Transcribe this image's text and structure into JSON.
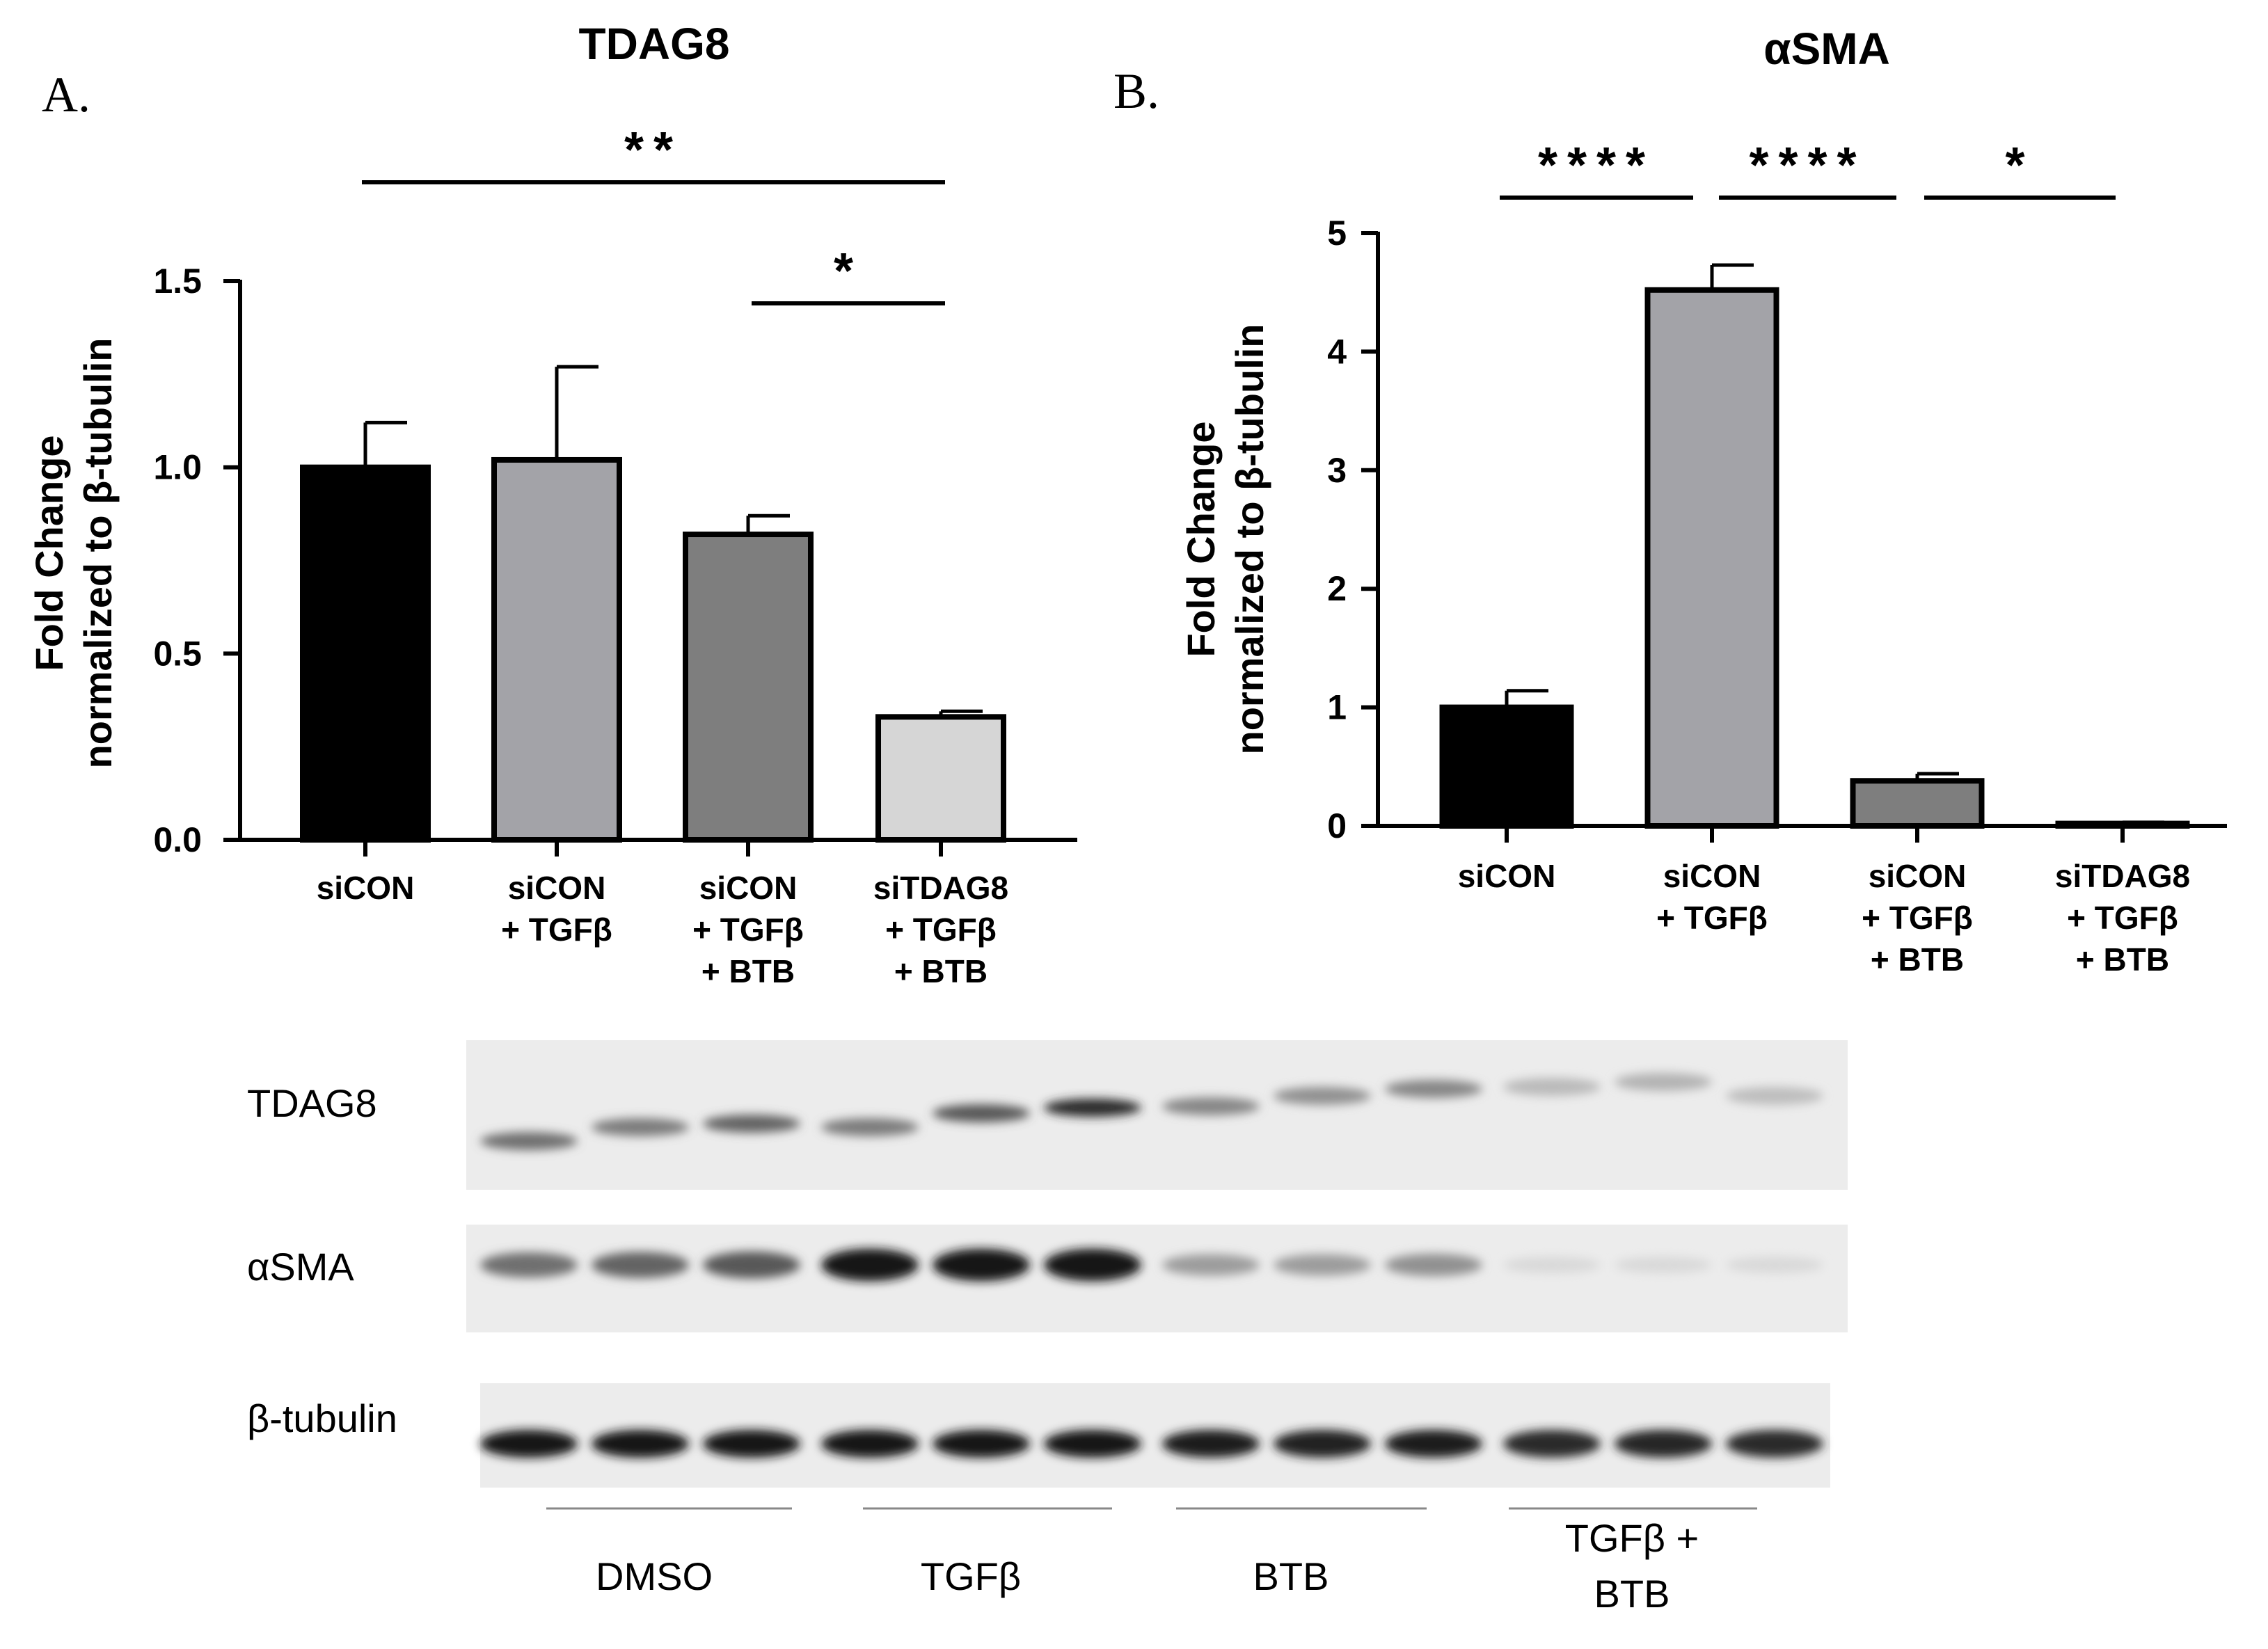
{
  "chart_data": [
    {
      "panel_letter": "A.",
      "type": "bar",
      "title": "TDAG8",
      "ylabel_line1": "Fold Change",
      "ylabel_line2": "normalized to β-tubulin",
      "ylim": [
        0,
        1.5
      ],
      "yticks": [
        "0.0",
        "0.5",
        "1.0",
        "1.5"
      ],
      "ytick_values": [
        0,
        0.5,
        1.0,
        1.5
      ],
      "categories": [
        [
          "siCON"
        ],
        [
          "siCON",
          "+ TGFβ"
        ],
        [
          "siCON",
          "+ TGFβ",
          "+ BTB"
        ],
        [
          "siTDAG8",
          "+ TGFβ",
          "+ BTB"
        ]
      ],
      "values": [
        1.0,
        1.02,
        0.82,
        0.33
      ],
      "errors": [
        0.12,
        0.25,
        0.05,
        0.015
      ],
      "colors": [
        "#000000",
        "#a3a3a8",
        "#7e7e7e",
        "#d6d6d6"
      ],
      "significance": [
        {
          "from": 0,
          "to": 3,
          "label": "**"
        },
        {
          "from": 2,
          "to": 3,
          "label": "*"
        }
      ]
    },
    {
      "panel_letter": "B.",
      "type": "bar",
      "title": "αSMA",
      "ylabel_line1": "Fold Change",
      "ylabel_line2": "normalized to β-tubulin",
      "ylim": [
        0,
        5
      ],
      "yticks": [
        "0",
        "1",
        "2",
        "3",
        "4",
        "5"
      ],
      "ytick_values": [
        0,
        1,
        2,
        3,
        4,
        5
      ],
      "categories": [
        [
          "siCON"
        ],
        [
          "siCON",
          "+ TGFβ"
        ],
        [
          "siCON",
          "+ TGFβ",
          "+ BTB"
        ],
        [
          "siTDAG8",
          "+ TGFβ",
          "+ BTB"
        ]
      ],
      "values": [
        1.0,
        4.52,
        0.38,
        0.02
      ],
      "errors": [
        0.14,
        0.21,
        0.06,
        0.01
      ],
      "colors": [
        "#000000",
        "#a3a3a8",
        "#7e7e7e",
        "#d6d6d6"
      ],
      "significance": [
        {
          "from": 0,
          "to": 1,
          "label": "****"
        },
        {
          "from": 1,
          "to": 2,
          "label": "****"
        },
        {
          "from": 2,
          "to": 3,
          "label": "*"
        }
      ]
    }
  ],
  "blot": {
    "rows": [
      {
        "label": "TDAG8",
        "intensities": [
          0.55,
          0.5,
          0.6,
          0.5,
          0.65,
          0.85,
          0.45,
          0.4,
          0.45,
          0.22,
          0.25,
          0.2
        ]
      },
      {
        "label": "αSMA",
        "intensities": [
          0.55,
          0.6,
          0.65,
          0.95,
          0.95,
          0.95,
          0.35,
          0.35,
          0.4,
          0.08,
          0.08,
          0.08
        ]
      },
      {
        "label": "β-tubulin",
        "intensities": [
          0.95,
          0.95,
          0.95,
          0.95,
          0.95,
          0.95,
          0.92,
          0.9,
          0.92,
          0.85,
          0.88,
          0.85
        ]
      }
    ],
    "groups": [
      {
        "label_lines": [
          "DMSO"
        ]
      },
      {
        "label_lines": [
          "TGFβ"
        ]
      },
      {
        "label_lines": [
          "BTB"
        ]
      },
      {
        "label_lines": [
          "TGFβ +",
          "BTB"
        ]
      }
    ]
  }
}
